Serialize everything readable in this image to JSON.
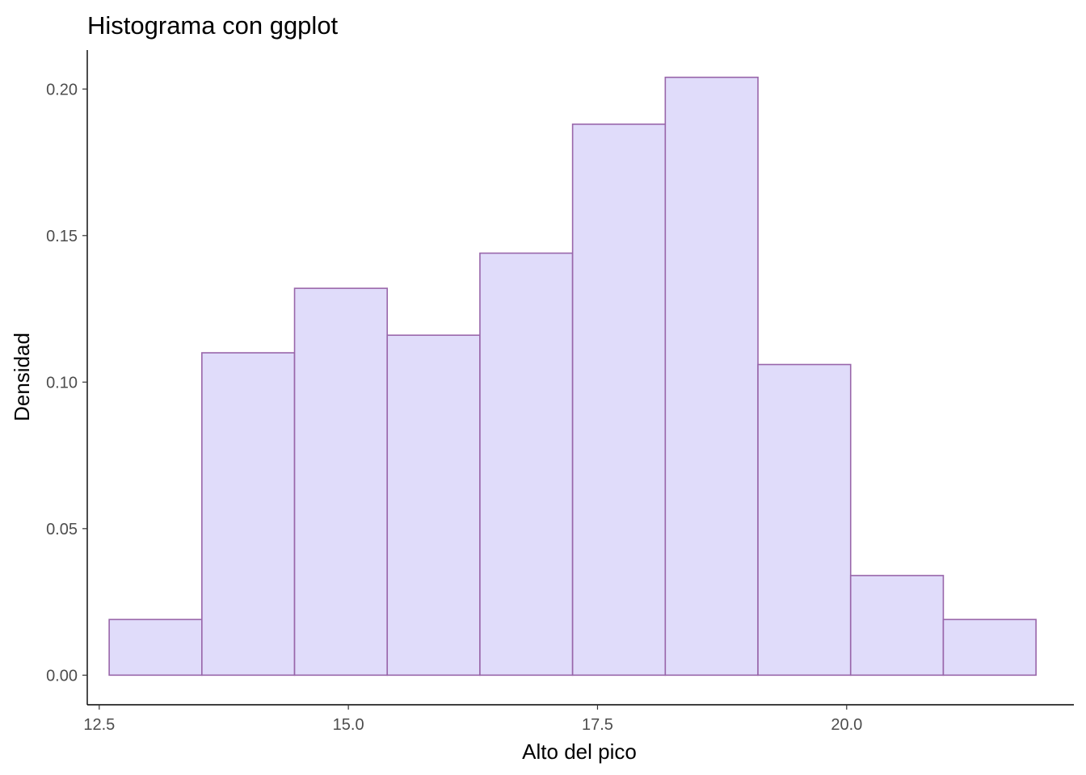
{
  "chart_data": {
    "type": "bar",
    "title": "Histograma con ggplot",
    "xlabel": "Alto del pico",
    "ylabel": "Densidad",
    "x_ticks": [
      "12.5",
      "15.0",
      "17.5",
      "20.0"
    ],
    "x_tick_values": [
      12.5,
      15.0,
      17.5,
      20.0
    ],
    "y_ticks": [
      "0.00",
      "0.05",
      "0.10",
      "0.15",
      "0.20"
    ],
    "y_tick_values": [
      0.0,
      0.05,
      0.1,
      0.15,
      0.2
    ],
    "xlim": [
      12.38,
      22.28
    ],
    "ylim": [
      -0.0101,
      0.2133
    ],
    "bins": [
      {
        "x_start": 12.6,
        "x_end": 13.53,
        "density": 0.019
      },
      {
        "x_start": 13.53,
        "x_end": 14.46,
        "density": 0.11
      },
      {
        "x_start": 14.46,
        "x_end": 15.39,
        "density": 0.132
      },
      {
        "x_start": 15.39,
        "x_end": 16.32,
        "density": 0.116
      },
      {
        "x_start": 16.32,
        "x_end": 17.25,
        "density": 0.144
      },
      {
        "x_start": 17.25,
        "x_end": 18.18,
        "density": 0.188
      },
      {
        "x_start": 18.18,
        "x_end": 19.11,
        "density": 0.204
      },
      {
        "x_start": 19.11,
        "x_end": 20.04,
        "density": 0.106
      },
      {
        "x_start": 20.04,
        "x_end": 20.97,
        "density": 0.034
      },
      {
        "x_start": 20.97,
        "x_end": 21.9,
        "density": 0.019
      }
    ],
    "grid": false,
    "colors": {
      "fill": "#e0dcfa",
      "stroke": "#9966aa"
    }
  }
}
